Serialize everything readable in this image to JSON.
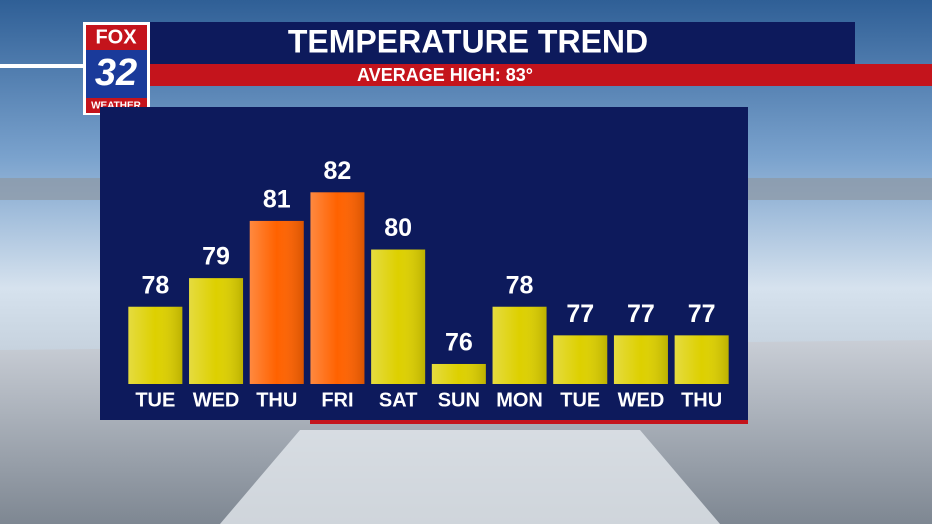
{
  "logo": {
    "brand": "FOX",
    "channel": "32",
    "label": "WEATHER"
  },
  "chart_data": {
    "type": "bar",
    "title": "TEMPERATURE TREND",
    "subtitle": "AVERAGE HIGH: 83°",
    "categories": [
      "TUE",
      "WED",
      "THU",
      "FRI",
      "SAT",
      "SUN",
      "MON",
      "TUE",
      "WED",
      "THU"
    ],
    "values": [
      78,
      79,
      81,
      82,
      80,
      76,
      78,
      77,
      77,
      77
    ],
    "colors": [
      "#ddd000",
      "#ddd000",
      "#ff6200",
      "#ff6200",
      "#ddd000",
      "#ddd000",
      "#ddd000",
      "#ddd000",
      "#ddd000",
      "#ddd000"
    ],
    "ylim": [
      75.3,
      82.5
    ]
  }
}
